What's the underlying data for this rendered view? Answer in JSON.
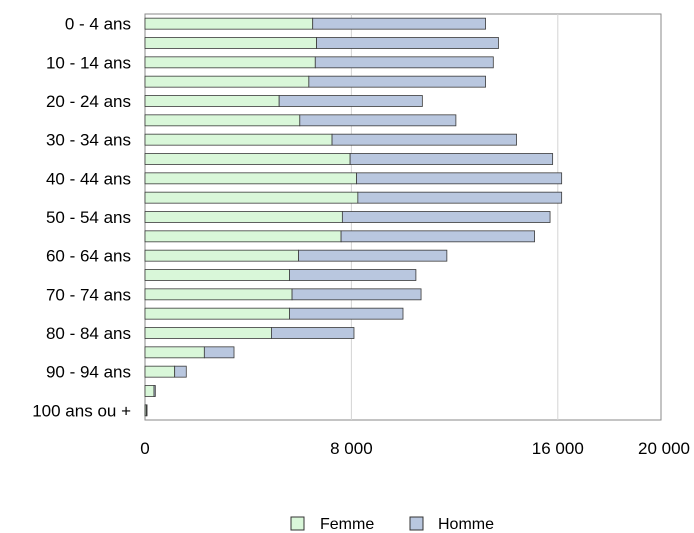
{
  "chart_data": {
    "type": "bar",
    "orientation": "horizontal",
    "stacked": true,
    "title": "",
    "xlabel": "",
    "ylabel": "",
    "categories": [
      "0 - 4 ans",
      "",
      "10 - 14 ans",
      "",
      "20 - 24 ans",
      "",
      "30 - 34 ans",
      "",
      "40 - 44 ans",
      "",
      "50 - 54 ans",
      "",
      "60 - 64 ans",
      "",
      "70 - 74 ans",
      "",
      "80 - 84 ans",
      "",
      "90 - 94 ans",
      "",
      "100 ans ou +"
    ],
    "series": [
      {
        "name": "Femme",
        "color": "#d9f7d9",
        "values": [
          6500,
          6650,
          6600,
          6350,
          5200,
          6000,
          7250,
          7950,
          8200,
          8250,
          7650,
          7600,
          5950,
          5600,
          5700,
          5600,
          4900,
          2300,
          1150,
          350,
          50
        ]
      },
      {
        "name": "Homme",
        "color": "#b9c7df",
        "values": [
          6700,
          7050,
          6900,
          6850,
          5550,
          6050,
          7150,
          7850,
          7950,
          7900,
          8050,
          7500,
          5750,
          4900,
          5000,
          4400,
          3200,
          1150,
          450,
          50,
          30
        ]
      }
    ],
    "xlim": [
      0,
      20000
    ],
    "xticks": [
      0,
      8000,
      16000,
      20000
    ],
    "xtick_labels": [
      "0",
      "8 000",
      "16 000",
      "20 000"
    ],
    "gridlines": "vertical",
    "legend": "bottom"
  }
}
